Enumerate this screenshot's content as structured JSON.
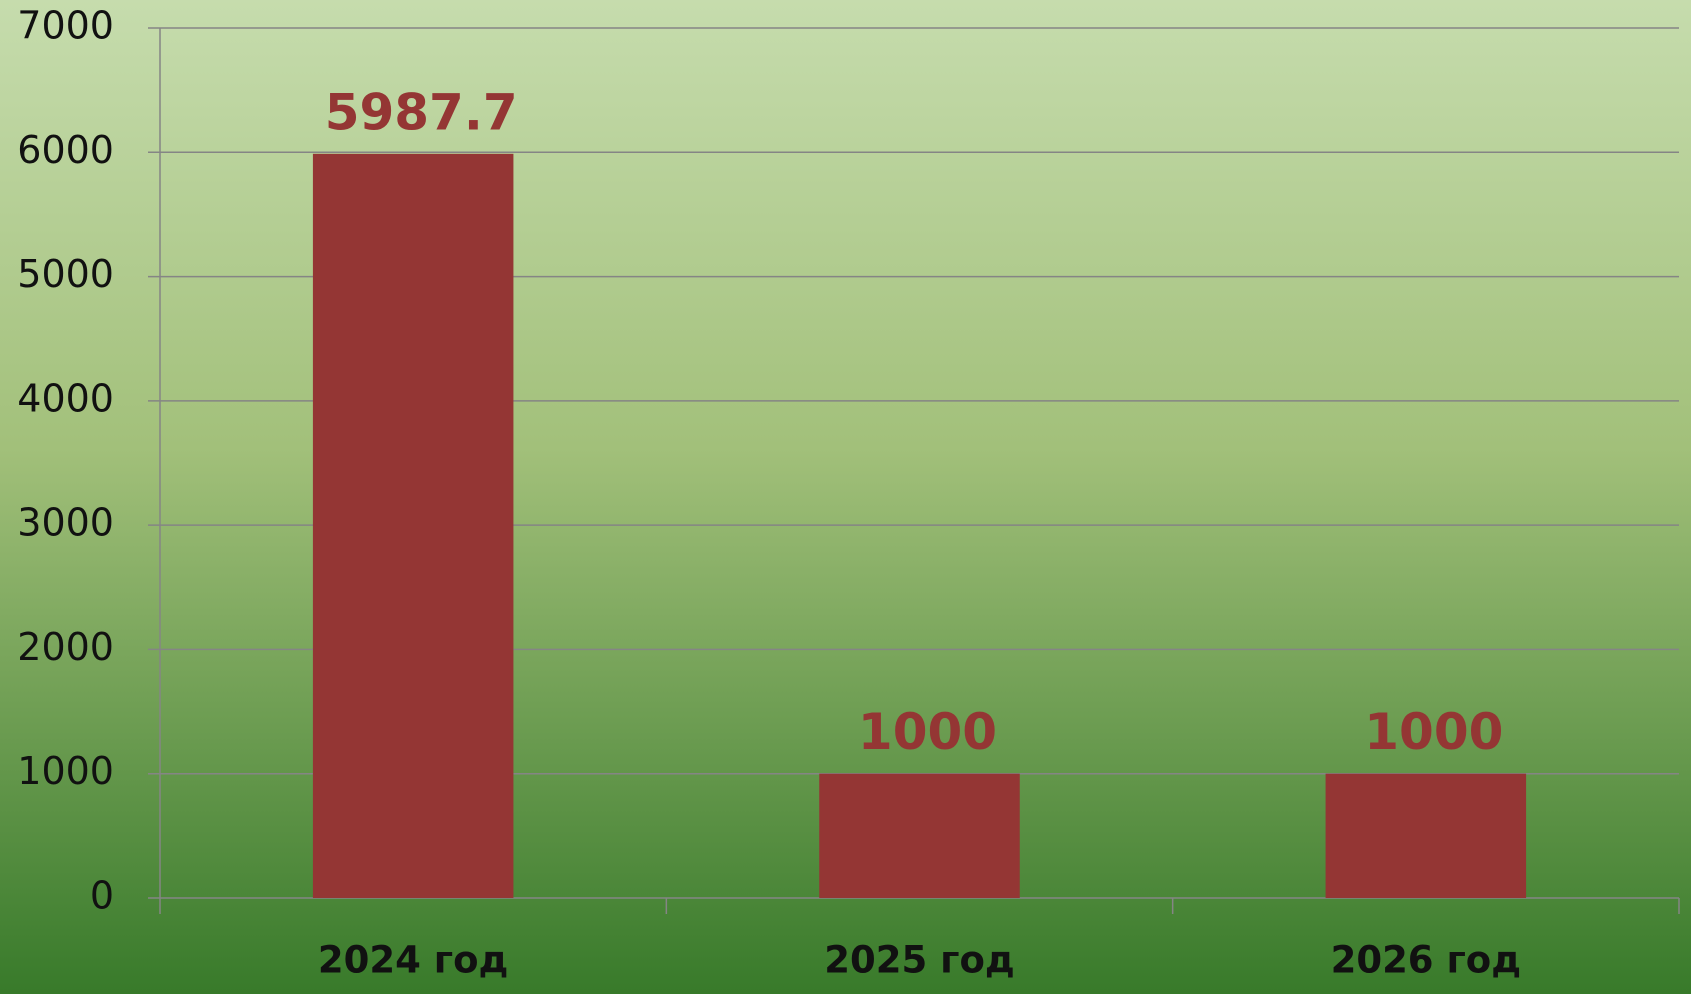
{
  "chart_data": {
    "type": "bar",
    "categories": [
      "2024 год",
      "2025 год",
      "2026 год"
    ],
    "values": [
      5987.7,
      1000,
      1000
    ],
    "color": "#943634",
    "ylim": [
      0,
      7000
    ],
    "yticks": [
      0,
      1000,
      2000,
      3000,
      4000,
      5000,
      6000,
      7000
    ],
    "grid": true,
    "data_labels": true
  }
}
